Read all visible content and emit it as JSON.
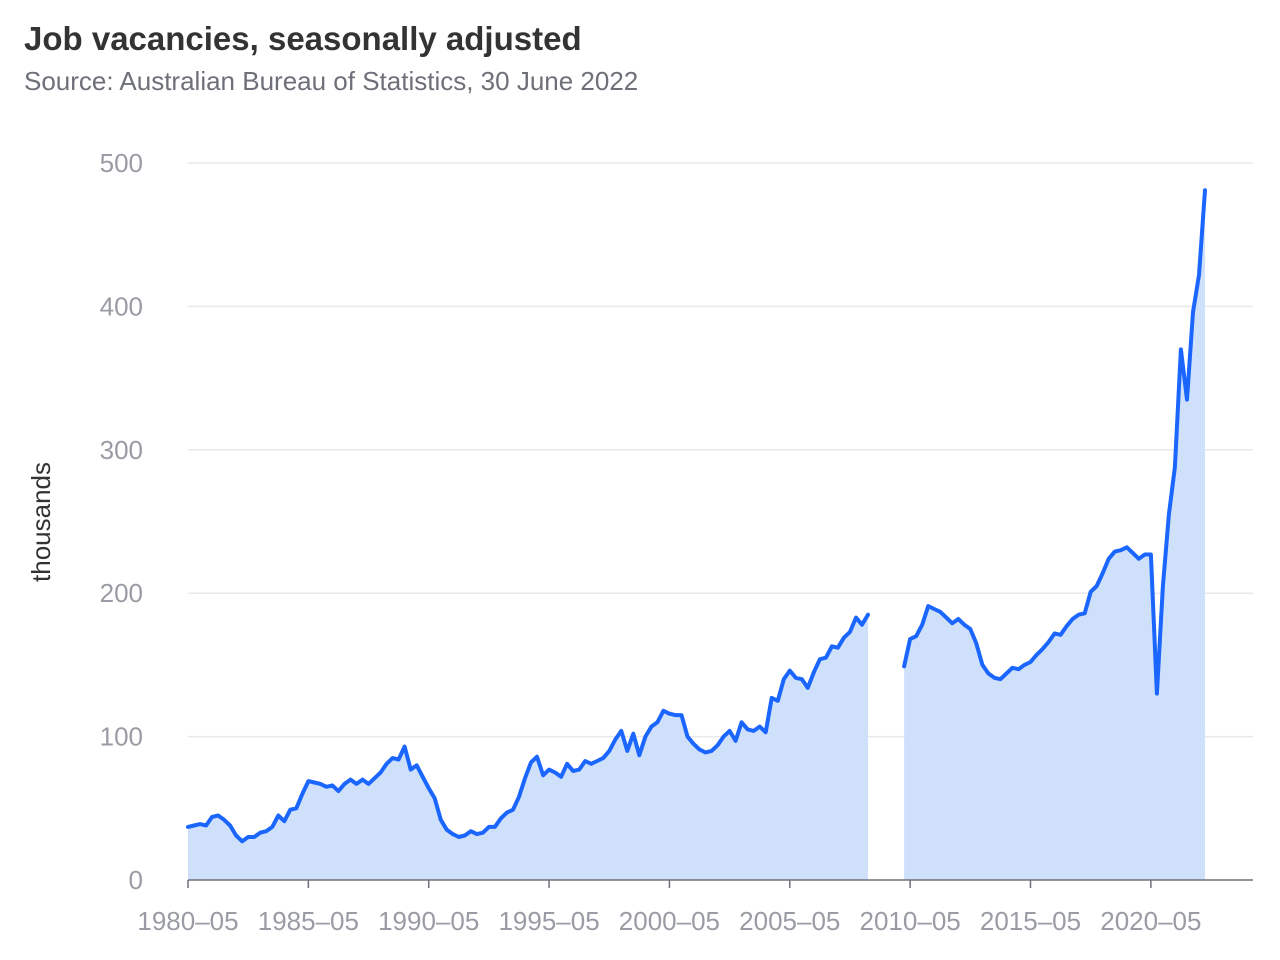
{
  "header": {
    "title": "Job vacancies, seasonally adjusted",
    "subtitle": "Source: Australian Bureau of Statistics, 30 June 2022"
  },
  "chart_data": {
    "type": "area",
    "title": "Job vacancies, seasonally adjusted",
    "subtitle": "Source: Australian Bureau of Statistics, 30 June 2022",
    "xlabel": "",
    "ylabel": "thousands",
    "ylim": [
      0,
      500
    ],
    "yticks": [
      0,
      100,
      200,
      300,
      400,
      500
    ],
    "xlim": [
      "1980-05",
      "2022-05"
    ],
    "xticks": [
      "1980-05",
      "1985-05",
      "1990-05",
      "1995-05",
      "2000-05",
      "2005-05",
      "2010-05",
      "2015-05",
      "2020-05"
    ],
    "grid": true,
    "colors": {
      "line": "#1a66ff",
      "area": "#cfe0fb",
      "grid": "#e6e8ee",
      "axis": "#6e7079"
    },
    "series": [
      {
        "points": [
          [
            "1980-05",
            37
          ],
          [
            "1980-08",
            38
          ],
          [
            "1980-11",
            39
          ],
          [
            "1981-02",
            38
          ],
          [
            "1981-05",
            44
          ],
          [
            "1981-08",
            45
          ],
          [
            "1981-11",
            42
          ],
          [
            "1982-02",
            38
          ],
          [
            "1982-05",
            31
          ],
          [
            "1982-08",
            27
          ],
          [
            "1982-11",
            30
          ],
          [
            "1983-02",
            30
          ],
          [
            "1983-05",
            33
          ],
          [
            "1983-08",
            34
          ],
          [
            "1983-11",
            37
          ],
          [
            "1984-02",
            45
          ],
          [
            "1984-05",
            41
          ],
          [
            "1984-08",
            49
          ],
          [
            "1984-11",
            50
          ],
          [
            "1985-02",
            60
          ],
          [
            "1985-05",
            69
          ],
          [
            "1985-08",
            68
          ],
          [
            "1985-11",
            67
          ],
          [
            "1986-02",
            65
          ],
          [
            "1986-05",
            66
          ],
          [
            "1986-08",
            62
          ],
          [
            "1986-11",
            67
          ],
          [
            "1987-02",
            70
          ],
          [
            "1987-05",
            67
          ],
          [
            "1987-08",
            70
          ],
          [
            "1987-11",
            67
          ],
          [
            "1988-02",
            71
          ],
          [
            "1988-05",
            75
          ],
          [
            "1988-08",
            81
          ],
          [
            "1988-11",
            85
          ],
          [
            "1989-02",
            84
          ],
          [
            "1989-05",
            93
          ],
          [
            "1989-08",
            77
          ],
          [
            "1989-11",
            80
          ],
          [
            "1990-02",
            72
          ],
          [
            "1990-05",
            64
          ],
          [
            "1990-08",
            57
          ],
          [
            "1990-11",
            42
          ],
          [
            "1991-02",
            35
          ],
          [
            "1991-05",
            32
          ],
          [
            "1991-08",
            30
          ],
          [
            "1991-11",
            31
          ],
          [
            "1992-02",
            34
          ],
          [
            "1992-05",
            32
          ],
          [
            "1992-08",
            33
          ],
          [
            "1992-11",
            37
          ],
          [
            "1993-02",
            37
          ],
          [
            "1993-05",
            43
          ],
          [
            "1993-08",
            47
          ],
          [
            "1993-11",
            49
          ],
          [
            "1994-02",
            58
          ],
          [
            "1994-05",
            71
          ],
          [
            "1994-08",
            82
          ],
          [
            "1994-11",
            86
          ],
          [
            "1995-02",
            73
          ],
          [
            "1995-05",
            77
          ],
          [
            "1995-08",
            75
          ],
          [
            "1995-11",
            72
          ],
          [
            "1996-02",
            81
          ],
          [
            "1996-05",
            76
          ],
          [
            "1996-08",
            77
          ],
          [
            "1996-11",
            83
          ],
          [
            "1997-02",
            81
          ],
          [
            "1997-05",
            83
          ],
          [
            "1997-08",
            85
          ],
          [
            "1997-11",
            90
          ],
          [
            "1998-02",
            98
          ],
          [
            "1998-05",
            104
          ],
          [
            "1998-08",
            90
          ],
          [
            "1998-11",
            102
          ],
          [
            "1999-02",
            87
          ],
          [
            "1999-05",
            100
          ],
          [
            "1999-08",
            107
          ],
          [
            "1999-11",
            110
          ],
          [
            "2000-02",
            118
          ],
          [
            "2000-05",
            116
          ],
          [
            "2000-08",
            115
          ],
          [
            "2000-11",
            115
          ],
          [
            "2001-02",
            100
          ],
          [
            "2001-05",
            95
          ],
          [
            "2001-08",
            91
          ],
          [
            "2001-11",
            89
          ],
          [
            "2002-02",
            90
          ],
          [
            "2002-05",
            94
          ],
          [
            "2002-08",
            100
          ],
          [
            "2002-11",
            104
          ],
          [
            "2003-02",
            97
          ],
          [
            "2003-05",
            110
          ],
          [
            "2003-08",
            105
          ],
          [
            "2003-11",
            104
          ],
          [
            "2004-02",
            107
          ],
          [
            "2004-05",
            103
          ],
          [
            "2004-08",
            127
          ],
          [
            "2004-11",
            125
          ],
          [
            "2005-02",
            140
          ],
          [
            "2005-05",
            146
          ],
          [
            "2005-08",
            141
          ],
          [
            "2005-11",
            140
          ],
          [
            "2006-02",
            134
          ],
          [
            "2006-05",
            145
          ],
          [
            "2006-08",
            154
          ],
          [
            "2006-11",
            155
          ],
          [
            "2007-02",
            163
          ],
          [
            "2007-05",
            162
          ],
          [
            "2007-08",
            169
          ],
          [
            "2007-11",
            173
          ],
          [
            "2008-02",
            183
          ],
          [
            "2008-05",
            178
          ],
          [
            "2008-08",
            185
          ],
          [
            "2008-11",
            null
          ],
          [
            "2009-02",
            null
          ],
          [
            "2009-05",
            null
          ],
          [
            "2009-08",
            null
          ],
          [
            "2009-11",
            null
          ],
          [
            "2010-02",
            149
          ],
          [
            "2010-05",
            168
          ],
          [
            "2010-08",
            170
          ],
          [
            "2010-11",
            178
          ],
          [
            "2011-02",
            191
          ],
          [
            "2011-05",
            189
          ],
          [
            "2011-08",
            187
          ],
          [
            "2011-11",
            183
          ],
          [
            "2012-02",
            179
          ],
          [
            "2012-05",
            182
          ],
          [
            "2012-08",
            178
          ],
          [
            "2012-11",
            175
          ],
          [
            "2013-02",
            165
          ],
          [
            "2013-05",
            150
          ],
          [
            "2013-08",
            144
          ],
          [
            "2013-11",
            141
          ],
          [
            "2014-02",
            140
          ],
          [
            "2014-05",
            144
          ],
          [
            "2014-08",
            148
          ],
          [
            "2014-11",
            147
          ],
          [
            "2015-02",
            150
          ],
          [
            "2015-05",
            152
          ],
          [
            "2015-08",
            157
          ],
          [
            "2015-11",
            161
          ],
          [
            "2016-02",
            166
          ],
          [
            "2016-05",
            172
          ],
          [
            "2016-08",
            171
          ],
          [
            "2016-11",
            177
          ],
          [
            "2017-02",
            182
          ],
          [
            "2017-05",
            185
          ],
          [
            "2017-08",
            186
          ],
          [
            "2017-11",
            201
          ],
          [
            "2018-02",
            205
          ],
          [
            "2018-05",
            214
          ],
          [
            "2018-08",
            224
          ],
          [
            "2018-11",
            229
          ],
          [
            "2019-02",
            230
          ],
          [
            "2019-05",
            232
          ],
          [
            "2019-08",
            228
          ],
          [
            "2019-11",
            224
          ],
          [
            "2020-02",
            227
          ],
          [
            "2020-05",
            227
          ],
          [
            "2020-08",
            130
          ],
          [
            "2020-11",
            205
          ],
          [
            "2021-02",
            255
          ],
          [
            "2021-05",
            288
          ],
          [
            "2021-08",
            370
          ],
          [
            "2021-11",
            335
          ],
          [
            "2022-02",
            396
          ],
          [
            "2022-05",
            422
          ],
          [
            "2022-08",
            481
          ]
        ]
      }
    ]
  }
}
